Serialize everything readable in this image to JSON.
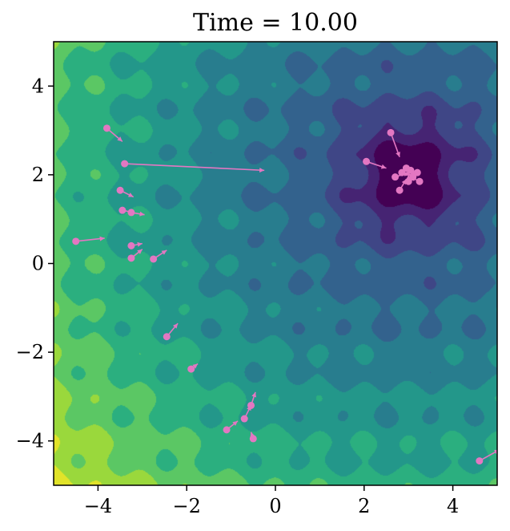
{
  "chart_data": {
    "type": "heatmap",
    "title": "Time = 10.00",
    "xlabel": "",
    "ylabel": "",
    "xlim": [
      -5,
      5
    ],
    "ylim": [
      -5,
      5
    ],
    "xticks": [
      -4,
      -2,
      0,
      2,
      4
    ],
    "yticks": [
      -4,
      -2,
      0,
      2,
      4
    ],
    "xtick_labels": [
      "−4",
      "−2",
      "0",
      "2",
      "4"
    ],
    "ytick_labels": [
      "−4",
      "−2",
      "0",
      "2",
      "4"
    ],
    "grid": false,
    "colormap": "viridis",
    "field": {
      "description_min_at": [
        3.0,
        2.0
      ],
      "contour_levels": 10
    },
    "particle_color": "#e377c2",
    "particles": [
      {
        "x": -3.8,
        "y": 3.05,
        "dx": 0.35,
        "dy": -0.3
      },
      {
        "x": -3.4,
        "y": 2.25,
        "dx": 3.15,
        "dy": -0.15
      },
      {
        "x": -3.5,
        "y": 1.65,
        "dx": 0.3,
        "dy": -0.15
      },
      {
        "x": -3.45,
        "y": 1.2,
        "dx": 0.25,
        "dy": -0.05
      },
      {
        "x": -3.25,
        "y": 1.15,
        "dx": 0.3,
        "dy": -0.05
      },
      {
        "x": -4.5,
        "y": 0.5,
        "dx": 0.65,
        "dy": 0.07
      },
      {
        "x": -3.25,
        "y": 0.4,
        "dx": 0.25,
        "dy": 0.05
      },
      {
        "x": -3.25,
        "y": 0.12,
        "dx": 0.25,
        "dy": 0.2
      },
      {
        "x": -2.75,
        "y": 0.1,
        "dx": 0.3,
        "dy": 0.2
      },
      {
        "x": -2.45,
        "y": -1.65,
        "dx": 0.25,
        "dy": 0.3
      },
      {
        "x": -1.9,
        "y": -2.38,
        "dx": 0.15,
        "dy": 0.12
      },
      {
        "x": -0.7,
        "y": -3.5,
        "dx": 0.15,
        "dy": 0.3
      },
      {
        "x": -0.55,
        "y": -3.2,
        "dx": 0.1,
        "dy": 0.3
      },
      {
        "x": -1.1,
        "y": -3.75,
        "dx": 0.25,
        "dy": 0.2
      },
      {
        "x": -0.5,
        "y": -3.95,
        "dx": -0.05,
        "dy": 0.15
      },
      {
        "x": 2.6,
        "y": 2.95,
        "dx": 0.2,
        "dy": -0.55
      },
      {
        "x": 2.05,
        "y": 2.3,
        "dx": 0.45,
        "dy": -0.15
      },
      {
        "x": 2.7,
        "y": 1.95,
        "dx": 0.3,
        "dy": 0.1
      },
      {
        "x": 2.8,
        "y": 1.65,
        "dx": 0.15,
        "dy": 0.25
      },
      {
        "x": 2.85,
        "y": 2.05,
        "dx": 0.2,
        "dy": -0.05
      },
      {
        "x": 2.95,
        "y": 2.15,
        "dx": 0.15,
        "dy": -0.1
      },
      {
        "x": 3.05,
        "y": 2.1,
        "dx": -0.05,
        "dy": -0.05
      },
      {
        "x": 3.1,
        "y": 1.95,
        "dx": -0.1,
        "dy": 0.05
      },
      {
        "x": 3.2,
        "y": 2.05,
        "dx": -0.15,
        "dy": -0.02
      },
      {
        "x": 3.25,
        "y": 1.85,
        "dx": -0.2,
        "dy": 0.1
      },
      {
        "x": 3.0,
        "y": 1.85,
        "dx": 0.0,
        "dy": 0.15
      },
      {
        "x": 4.6,
        "y": -4.45,
        "dx": 0.45,
        "dy": 0.25
      }
    ]
  }
}
